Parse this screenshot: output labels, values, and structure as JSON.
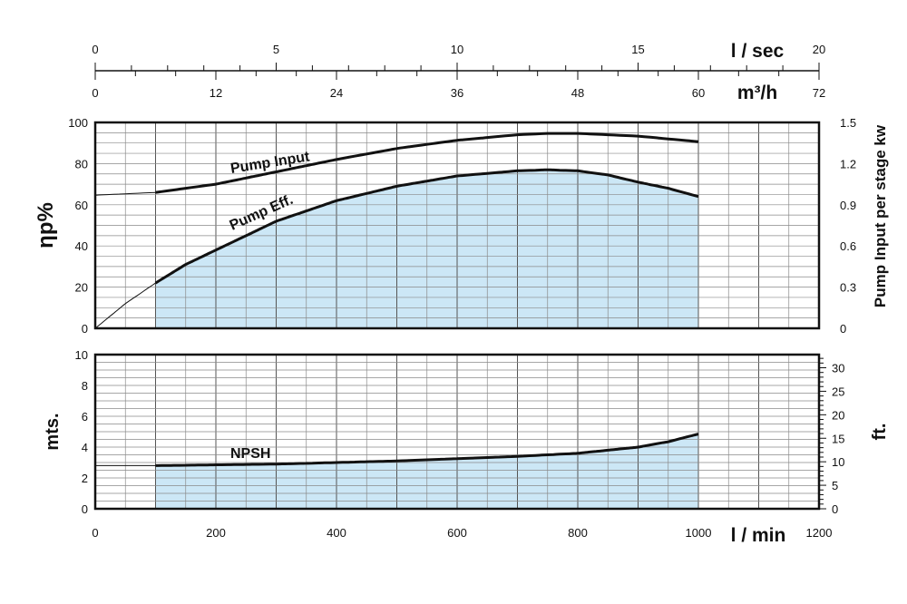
{
  "chart_data": [
    {
      "type": "line",
      "role": "top-flow-axes",
      "axes": [
        {
          "unit": "l / sec",
          "range": [
            0,
            20
          ],
          "labeled_ticks": [
            "0",
            "5",
            "10",
            "15",
            "20"
          ]
        },
        {
          "unit": "m³/h",
          "range": [
            0,
            72
          ],
          "labeled_ticks": [
            "0",
            "12",
            "24",
            "36",
            "48",
            "60",
            "72"
          ]
        }
      ]
    },
    {
      "type": "area",
      "role": "efficiency-and-power",
      "xlim": [
        0,
        1200
      ],
      "left_axis": {
        "label": "ηp%",
        "range": [
          0,
          100
        ],
        "ticks": [
          "0",
          "20",
          "40",
          "60",
          "80",
          "100"
        ]
      },
      "right_axis": {
        "label": "Pump Input per stage kw",
        "range": [
          0,
          1.5
        ],
        "ticks": [
          "0",
          "0.3",
          "0.6",
          "0.9",
          "1.2",
          "1.5"
        ]
      },
      "shaded_range": [
        100,
        1000
      ],
      "grid": true,
      "series": [
        {
          "name": "Pump Input",
          "axis": "right",
          "x": [
            0,
            50,
            100,
            150,
            200,
            300,
            400,
            500,
            600,
            700,
            750,
            800,
            900,
            1000
          ],
          "values": [
            0.97,
            0.98,
            0.99,
            1.02,
            1.05,
            1.14,
            1.23,
            1.31,
            1.37,
            1.41,
            1.42,
            1.42,
            1.4,
            1.36
          ]
        },
        {
          "name": "Pump Eff.",
          "axis": "left",
          "x": [
            0,
            50,
            100,
            150,
            200,
            300,
            400,
            500,
            600,
            700,
            750,
            800,
            850,
            900,
            950,
            1000
          ],
          "values": [
            0,
            12,
            22,
            31,
            38,
            52,
            62,
            69,
            74,
            76.5,
            77,
            76.5,
            74.5,
            71,
            68,
            64
          ]
        }
      ]
    },
    {
      "type": "area",
      "role": "npsh",
      "xlabel": "l / min",
      "xlim": [
        0,
        1200
      ],
      "x_ticks": [
        "0",
        "200",
        "400",
        "600",
        "800",
        "1000",
        "1200"
      ],
      "left_axis": {
        "label": "mts.",
        "range": [
          0,
          10
        ],
        "ticks": [
          "0",
          "2",
          "4",
          "6",
          "8",
          "10"
        ]
      },
      "right_axis": {
        "label": "ft.",
        "range": [
          0,
          32.8
        ],
        "ticks": [
          "0",
          "5",
          "10",
          "15",
          "20",
          "25",
          "30"
        ]
      },
      "shaded_range": [
        100,
        1000
      ],
      "grid": true,
      "series": [
        {
          "name": "NPSH",
          "x": [
            0,
            100,
            200,
            300,
            400,
            500,
            600,
            700,
            800,
            900,
            950,
            1000
          ],
          "values": [
            2.8,
            2.8,
            2.85,
            2.9,
            3.0,
            3.1,
            3.25,
            3.4,
            3.6,
            4.0,
            4.35,
            4.85
          ]
        }
      ]
    }
  ],
  "colors": {
    "fill": "#cce7f6",
    "grid": "#8a8a8a",
    "ink": "#111111"
  }
}
